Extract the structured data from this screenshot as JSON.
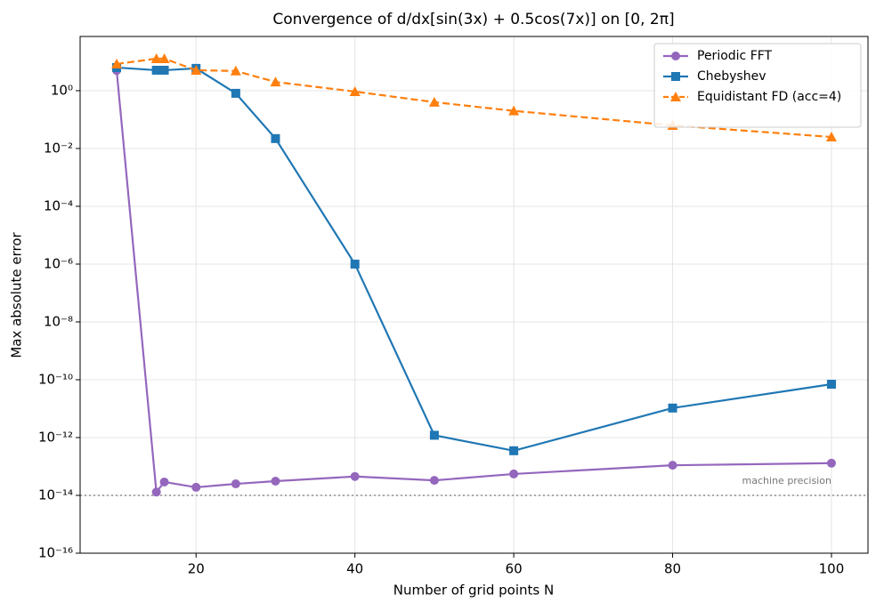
{
  "chart_data": {
    "type": "line",
    "title": "Convergence of d/dx[sin(3x) + 0.5cos(7x)] on [0, 2π]",
    "xlabel": "Number of grid points N",
    "ylabel": "Max absolute error",
    "x": [
      10,
      15,
      16,
      20,
      25,
      30,
      40,
      50,
      60,
      80,
      100
    ],
    "series": [
      {
        "name": "Periodic FFT",
        "color": "#9467bd",
        "marker": "circle",
        "linestyle": "solid",
        "values": [
          5,
          1.3e-14,
          2.9e-14,
          1.9e-14,
          2.5e-14,
          3.1e-14,
          4.5e-14,
          3.3e-14,
          5.5e-14,
          1.1e-13,
          1.3e-13
        ]
      },
      {
        "name": "Chebyshev",
        "color": "#1f77b4",
        "marker": "square",
        "linestyle": "solid",
        "values": [
          6.3,
          5.1,
          5.1,
          5.9,
          0.81,
          0.022,
          1e-06,
          1.2e-12,
          3.5e-13,
          1.05e-11,
          7e-11
        ]
      },
      {
        "name": "Equidistant FD (acc=4)",
        "color": "#ff7f0e",
        "marker": "triangle",
        "linestyle": "dashed",
        "values": [
          8.4,
          12.8,
          12.8,
          5.1,
          4.8,
          2.0,
          0.93,
          0.4,
          0.2,
          0.063,
          0.025
        ]
      }
    ],
    "hline": {
      "value": 1e-14,
      "label": "machine precision"
    },
    "xlim": [
      5.4,
      104.6
    ],
    "xticks": [
      20,
      40,
      60,
      80,
      100
    ],
    "ylim": [
      1e-16,
      75
    ],
    "yscale": "log",
    "yticks": [
      {
        "value": 1e-16,
        "label": "10⁻¹⁶"
      },
      {
        "value": 1e-14,
        "label": "10⁻¹⁴"
      },
      {
        "value": 1e-12,
        "label": "10⁻¹²"
      },
      {
        "value": 1e-10,
        "label": "10⁻¹⁰"
      },
      {
        "value": 1e-08,
        "label": "10⁻⁸"
      },
      {
        "value": 1e-06,
        "label": "10⁻⁶"
      },
      {
        "value": 0.0001,
        "label": "10⁻⁴"
      },
      {
        "value": 0.01,
        "label": "10⁻²"
      },
      {
        "value": 1,
        "label": "10⁰"
      }
    ],
    "grid": true,
    "legend": "upper right"
  }
}
